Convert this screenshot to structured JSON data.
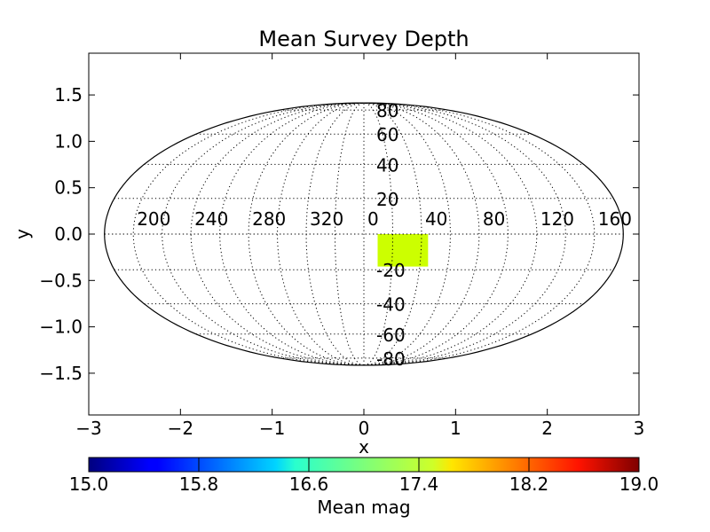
{
  "chart_data": {
    "type": "heatmap",
    "projection": "mollweide",
    "title": "Mean Survey Depth",
    "xlabel": "x",
    "ylabel": "y",
    "xlim": [
      -3,
      3
    ],
    "ylim": [
      -1.95,
      1.95
    ],
    "x_ticks": [
      "−3",
      "−2",
      "−1",
      "0",
      "1",
      "2",
      "3"
    ],
    "y_ticks": [
      "1.5",
      "1.0",
      "0.5",
      "0.0",
      "−0.5",
      "−1.0",
      "−1.5"
    ],
    "longitude_labels": [
      "200",
      "240",
      "280",
      "320",
      "0",
      "40",
      "80",
      "120",
      "160"
    ],
    "latitude_labels": [
      "80",
      "60",
      "40",
      "20",
      "-20",
      "-40",
      "-60",
      "-80"
    ],
    "grid": true,
    "cells": [
      {
        "x_range": [
          0.15,
          0.7
        ],
        "y_range": [
          -0.35,
          0.0
        ],
        "mean_mag": 17.6,
        "color": "#ccff00"
      }
    ],
    "colorbar": {
      "label": "Mean mag",
      "ticks": [
        "15.0",
        "15.8",
        "16.6",
        "17.4",
        "18.2",
        "19.0"
      ],
      "range": [
        15.0,
        19.0
      ],
      "colormap": "jet"
    }
  }
}
